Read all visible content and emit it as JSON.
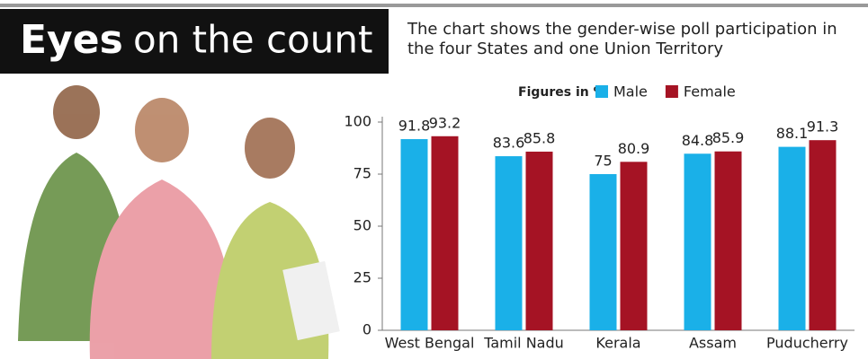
{
  "chart_data": {
    "type": "bar",
    "title_emphasis": "Eyes",
    "title": "on the count",
    "subtitle": "The chart shows the gender-wise poll participation in the four States and one Union Territory",
    "unit_note": "Figures in %",
    "categories": [
      "West Bengal",
      "Tamil Nadu",
      "Kerala",
      "Assam",
      "Puducherry"
    ],
    "series": [
      {
        "name": "Male",
        "color": "#1ab0e8",
        "values": [
          91.8,
          83.6,
          75,
          84.8,
          88.1
        ]
      },
      {
        "name": "Female",
        "color": "#a51324",
        "values": [
          93.2,
          85.8,
          80.9,
          85.9,
          91.3
        ]
      }
    ],
    "ylim": [
      0,
      100
    ],
    "yticks": [
      0,
      25,
      50,
      75,
      100
    ],
    "grid": false
  }
}
